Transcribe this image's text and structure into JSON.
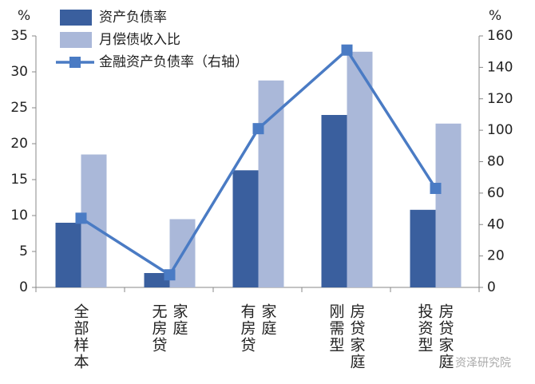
{
  "chart_data": {
    "type": "bar",
    "y_unit": "%",
    "y2_unit": "%",
    "categories": [
      "全部样本",
      "无房贷\n家庭",
      "有房贷\n家庭",
      "刚需型\n房贷家庭",
      "投资型\n房贷家庭"
    ],
    "series": [
      {
        "name": "资产负债率",
        "color": "#3a5f9e",
        "type": "bar",
        "values": [
          9,
          2,
          16.3,
          24,
          10.8
        ]
      },
      {
        "name": "月偿债收入比",
        "color": "#aab8d9",
        "type": "bar",
        "values": [
          18.5,
          9.5,
          28.8,
          32.8,
          22.8
        ]
      },
      {
        "name": "金融资产负债率（右轴）",
        "color": "#4a7bc4",
        "type": "line",
        "axis": "y2",
        "values": [
          44,
          8,
          101,
          151,
          63
        ]
      }
    ],
    "ylim": [
      0,
      35
    ],
    "yticks": [
      0,
      5,
      10,
      15,
      20,
      25,
      30,
      35
    ],
    "y2lim": [
      0,
      160
    ],
    "y2ticks": [
      0,
      20,
      40,
      60,
      80,
      100,
      120,
      140,
      160
    ],
    "legend": "top-left",
    "watermark": "资泽研究院"
  }
}
